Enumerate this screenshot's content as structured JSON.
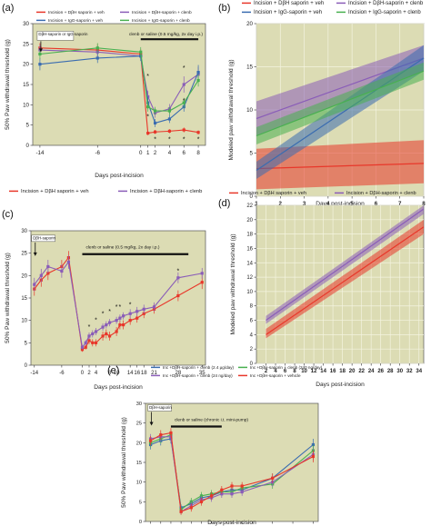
{
  "chart_data": [
    {
      "panel": "(a)",
      "type": "line",
      "xlabel": "Days post-incision",
      "ylabel": "50% Paw withdrawal threshold (g)",
      "xlim": [
        -15,
        9
      ],
      "ylim": [
        0,
        30
      ],
      "x_ticks": [
        -14,
        -6,
        0,
        1,
        2,
        4,
        6,
        8
      ],
      "x_tick_positions": [
        -14,
        -6,
        0,
        1,
        2,
        4,
        6,
        8
      ],
      "y_ticks": [
        0,
        5,
        10,
        15,
        20,
        25,
        30
      ],
      "legend": [
        "Incision + DβH saporin + veh",
        "Incision + DβH-saporin + clenb",
        "Incision + IgG-saporin + veh",
        "Incision + IgG-saporin + clenb"
      ],
      "annotations": [
        {
          "text": "DβH-saporin or IgG-saporin",
          "x": -14,
          "y": 27
        },
        {
          "text": "clenb or saline (0.5 mg/kg, 2x day i.p.)",
          "x": 3.5,
          "y": 27.5
        },
        {
          "text": "*",
          "x": 1,
          "y": 17
        },
        {
          "text": "*",
          "x": 1,
          "y": 7
        },
        {
          "text": "*",
          "x": 2,
          "y": 1.5
        },
        {
          "text": "*",
          "x": 4,
          "y": 1.5
        },
        {
          "text": "*",
          "x": 6,
          "y": 19
        },
        {
          "text": "*",
          "x": 6,
          "y": 11
        },
        {
          "text": "*",
          "x": 6,
          "y": 1.5
        },
        {
          "text": "*",
          "x": 8,
          "y": 1.5
        }
      ],
      "series": [
        {
          "name": "Incision + DβH saporin + veh",
          "color": "#e8372a",
          "x": [
            -14,
            -6,
            0,
            1,
            2,
            4,
            6,
            8
          ],
          "y": [
            24,
            23.5,
            22.5,
            3,
            3.3,
            3.5,
            3.8,
            3.2
          ],
          "err": [
            1.2,
            1.5,
            1.2,
            0.5,
            0.5,
            0.5,
            0.6,
            0.5
          ]
        },
        {
          "name": "Incision + DβH-saporin + clenb",
          "color": "#8a5db8",
          "x": [
            -14,
            -6,
            0,
            1,
            2,
            4,
            6,
            8
          ],
          "y": [
            23.5,
            23,
            22,
            12,
            8,
            9,
            15,
            17.5
          ],
          "err": [
            1.2,
            1.5,
            1.2,
            1.5,
            1.2,
            1.2,
            2,
            1.8
          ]
        },
        {
          "name": "Incision + IgG-saporin + veh",
          "color": "#3a6cb0",
          "x": [
            -14,
            -6,
            0,
            1,
            2,
            4,
            6,
            8
          ],
          "y": [
            20,
            21.5,
            22,
            10.5,
            5.5,
            6.5,
            9.5,
            18
          ],
          "err": [
            1.5,
            1.2,
            1.2,
            1.5,
            1,
            1,
            1.2,
            1.8
          ]
        },
        {
          "name": "Incision + IgG-saporin + clenb",
          "color": "#48b050",
          "x": [
            -14,
            -6,
            0,
            1,
            2,
            4,
            6,
            8
          ],
          "y": [
            22.5,
            24,
            23,
            9.5,
            8.5,
            8.5,
            10.5,
            16
          ],
          "err": [
            1.2,
            1.2,
            1.2,
            1.2,
            1,
            1,
            1.2,
            1.5
          ]
        }
      ]
    },
    {
      "panel": "(b)",
      "type": "line",
      "xlabel": "Days post-incision",
      "ylabel": "Modeled paw withdrawal threshold (g)",
      "xlim": [
        1,
        8
      ],
      "ylim": [
        0,
        20
      ],
      "x_ticks": [
        1,
        2,
        3,
        4,
        5,
        6,
        7,
        8
      ],
      "y_ticks": [
        0,
        5,
        10,
        15,
        20
      ],
      "legend": [
        "Incision + DβH saporin + veh",
        "Incision + DβH-saporin + clenb",
        "Incision + IgG-saporin + veh",
        "Incision + IgG-saporin + clenb"
      ],
      "series": [
        {
          "name": "Incision + DβH saporin + veh",
          "color": "#e8372a",
          "x": [
            1,
            8
          ],
          "y": [
            3.2,
            3.8
          ],
          "lower": [
            0.8,
            1.5
          ],
          "upper": [
            5.5,
            6.5
          ]
        },
        {
          "name": "Incision + DβH-saporin + clenb",
          "color": "#8a5db8",
          "x": [
            1,
            8
          ],
          "y": [
            9,
            16
          ],
          "lower": [
            7,
            14.5
          ],
          "upper": [
            11,
            17.5
          ]
        },
        {
          "name": "Incision + IgG-saporin + veh",
          "color": "#3a6cb0",
          "x": [
            1,
            8
          ],
          "y": [
            3,
            16
          ],
          "lower": [
            2,
            14.5
          ],
          "upper": [
            4,
            17.5
          ]
        },
        {
          "name": "Incision + IgG-saporin + clenb",
          "color": "#48b050",
          "x": [
            1,
            8
          ],
          "y": [
            7,
            14.5
          ],
          "lower": [
            6,
            13.5
          ],
          "upper": [
            8,
            15.5
          ]
        }
      ]
    },
    {
      "panel": "(c)",
      "type": "line",
      "xlabel": "Days post-incision",
      "ylabel": "50% Paw withdrawal threshold (g)",
      "xlim": [
        -15,
        36
      ],
      "ylim": [
        0,
        30
      ],
      "x_ticks": [
        "-14",
        "-6",
        "0",
        "2",
        "4",
        "8",
        "10",
        "14",
        "16",
        "18",
        "21",
        "28",
        "35"
      ],
      "x_tick_positions": [
        -14,
        -6,
        0,
        2,
        4,
        8,
        10,
        14,
        16,
        18,
        21,
        28,
        35
      ],
      "y_ticks": [
        0,
        5,
        10,
        15,
        20,
        25,
        30
      ],
      "legend": [
        "Incision + DβH saporin + veh",
        "Incision + DβH-saporin + clenb"
      ],
      "annotations": [
        {
          "text": "DβH-saporin",
          "x": -14,
          "y": 28
        },
        {
          "text": "clenb or saline (0.5 mg/kg, 2x day i.p.)",
          "x": 4,
          "y": 26
        },
        {
          "text": "*",
          "x": 2,
          "y": 8.5
        },
        {
          "text": "*",
          "x": 4,
          "y": 10
        },
        {
          "text": "*",
          "x": 6,
          "y": 11.5
        },
        {
          "text": "*",
          "x": 8,
          "y": 12
        },
        {
          "text": "*",
          "x": 10,
          "y": 13
        },
        {
          "text": "*",
          "x": 11,
          "y": 13
        },
        {
          "text": "*",
          "x": 14,
          "y": 13.5
        },
        {
          "text": "*",
          "x": 28,
          "y": 21
        }
      ],
      "series": [
        {
          "name": "Incision + DβH saporin + veh",
          "color": "#e8372a",
          "x": [
            -14,
            -12,
            -10,
            -6,
            -4,
            0,
            1,
            2,
            3,
            4,
            6,
            7,
            8,
            10,
            11,
            12,
            14,
            16,
            18,
            21,
            28,
            35
          ],
          "y": [
            17,
            19,
            20.5,
            22,
            24,
            3.5,
            4,
            5.5,
            5,
            5,
            6.5,
            7,
            6.5,
            7.5,
            9,
            9,
            10,
            10.5,
            11.5,
            12.5,
            15.5,
            18.5
          ],
          "err": [
            1.5,
            1.5,
            1.5,
            1.5,
            1.5,
            0.5,
            0.5,
            0.8,
            0.8,
            0.8,
            1,
            1,
            1,
            1,
            1,
            1,
            1,
            1,
            1,
            1,
            1.2,
            1.5
          ]
        },
        {
          "name": "Incision + DβH-saporin + clenb",
          "color": "#8a5db8",
          "x": [
            -14,
            -12,
            -10,
            -6,
            -4,
            0,
            1,
            2,
            3,
            4,
            6,
            7,
            8,
            10,
            11,
            12,
            14,
            16,
            18,
            21,
            28,
            35
          ],
          "y": [
            18,
            20,
            22,
            21,
            23,
            4,
            5,
            6.5,
            7,
            7.5,
            8.5,
            9,
            9.5,
            10,
            10.5,
            11,
            11.5,
            12,
            12.5,
            13,
            19.5,
            20.5
          ],
          "err": [
            1.5,
            1.5,
            1.5,
            1.5,
            1.5,
            0.5,
            0.6,
            0.8,
            0.8,
            0.8,
            0.8,
            0.8,
            0.8,
            0.8,
            0.8,
            0.8,
            1,
            1,
            1,
            1,
            1.2,
            1.2
          ]
        }
      ]
    },
    {
      "panel": "(d)",
      "type": "line",
      "xlabel": "Days post-incision",
      "ylabel": "Modeled paw withdrawal threshold (g)",
      "xlim": [
        0,
        35
      ],
      "ylim": [
        0,
        22
      ],
      "x_ticks": [
        2,
        4,
        6,
        8,
        10,
        12,
        14,
        16,
        18,
        20,
        22,
        24,
        26,
        28,
        30,
        32,
        34
      ],
      "y_ticks": [
        0,
        2,
        4,
        6,
        8,
        10,
        12,
        14,
        16,
        18,
        20,
        22
      ],
      "legend": [
        "Incision + DβH saporin + veh",
        "Incision + DβH-saporin + clenb"
      ],
      "series": [
        {
          "name": "Incision + DβH saporin + veh",
          "color": "#e8372a",
          "x": [
            2,
            35
          ],
          "y": [
            4,
            19
          ],
          "lower": [
            3.5,
            18
          ],
          "upper": [
            4.8,
            20
          ]
        },
        {
          "name": "Incision + DβH-saporin + clenb",
          "color": "#8a5db8",
          "x": [
            2,
            35
          ],
          "y": [
            6,
            21.5
          ],
          "lower": [
            5.5,
            20.8
          ],
          "upper": [
            6.6,
            22
          ]
        }
      ]
    },
    {
      "panel": "(e)",
      "type": "line",
      "xlabel": "Days post-incision",
      "ylabel": "50% Paw withdrawal threshold (g)",
      "xlim": [
        -5,
        29
      ],
      "ylim": [
        0,
        30
      ],
      "x_ticks": [
        "-4",
        "-2",
        "0",
        "2",
        "4",
        "6",
        "8",
        "10",
        "12",
        "14",
        "16",
        "20",
        "24",
        "28"
      ],
      "x_tick_positions": [
        -4,
        -2,
        0,
        2,
        4,
        6,
        8,
        10,
        12,
        14,
        16,
        20,
        24,
        28
      ],
      "y_ticks": [
        0,
        5,
        10,
        15,
        20,
        25,
        30
      ],
      "legend": [
        "Inc +DβH-saporin + clenb (2.4 μg/day)",
        "Inc +DβH-saporin + clenb (240 ng/day)",
        "Inc +DβH-saporin + clenb (24 ng/day)",
        "Inc +DβH-saporin + vehicle"
      ],
      "annotations": [
        {
          "text": "DβH-saporin",
          "x": -4,
          "y": 28.5
        },
        {
          "text": "clenb or saline (chronic i.t. mini-pump)",
          "x": 4,
          "y": 25.5
        }
      ],
      "series": [
        {
          "name": "Inc +DβH-saporin + clenb (2.4 μg/day)",
          "color": "#3a6cb0",
          "x": [
            -4,
            -2,
            0,
            2,
            4,
            6,
            8,
            10,
            12,
            14,
            20,
            28
          ],
          "y": [
            19.5,
            20.5,
            21,
            3.5,
            4.5,
            6,
            6.5,
            7.5,
            8,
            8,
            11,
            19.5
          ],
          "err": [
            1.2,
            1.2,
            1.2,
            0.8,
            1,
            1,
            1,
            1,
            1,
            1,
            1.2,
            1.5
          ]
        },
        {
          "name": "Inc +DβH-saporin + clenb (240 ng/day)",
          "color": "#48b050",
          "x": [
            -4,
            -2,
            0,
            2,
            4,
            6,
            8,
            10,
            12,
            14,
            20,
            28
          ],
          "y": [
            20,
            21,
            22,
            3,
            5,
            6.5,
            7,
            7.5,
            7.5,
            8.5,
            9.5,
            18
          ],
          "err": [
            1.2,
            1.2,
            1.2,
            0.8,
            1,
            1,
            1,
            1,
            1,
            1,
            1.2,
            1.5
          ]
        },
        {
          "name": "Inc +DβH-saporin + clenb (24 ng/day)",
          "color": "#8a5db8",
          "x": [
            -4,
            -2,
            0,
            2,
            4,
            6,
            8,
            10,
            12,
            14,
            20,
            28
          ],
          "y": [
            21,
            21.5,
            21.5,
            2.5,
            4,
            5.5,
            6,
            7,
            7,
            7.5,
            10,
            17
          ],
          "err": [
            1.2,
            1.2,
            1.2,
            0.8,
            1,
            1,
            1,
            1,
            1,
            1,
            1.2,
            1.5
          ]
        },
        {
          "name": "Inc +DβH-saporin + vehicle",
          "color": "#e8372a",
          "x": [
            -4,
            -2,
            0,
            2,
            4,
            6,
            8,
            10,
            12,
            14,
            20,
            28
          ],
          "y": [
            20.5,
            22,
            22.5,
            2.5,
            3.5,
            5,
            6.5,
            8,
            9,
            9,
            11,
            16.5
          ],
          "err": [
            1.2,
            1.2,
            1.2,
            0.8,
            1,
            1,
            1,
            1,
            1,
            1,
            1.2,
            1.5
          ]
        }
      ]
    }
  ]
}
